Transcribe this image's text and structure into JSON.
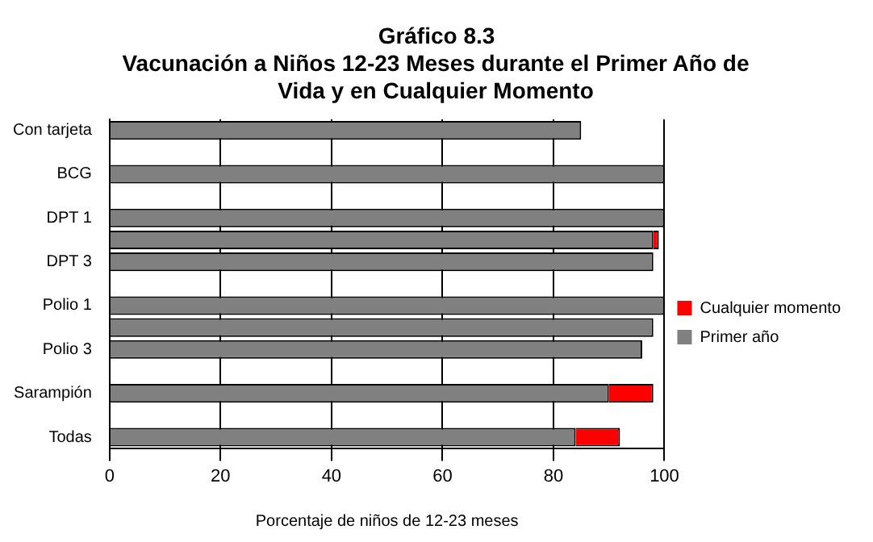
{
  "chart_data": {
    "type": "bar",
    "orientation": "horizontal",
    "stacked": true,
    "title": "Gráfico 8.3",
    "subtitle": "Vacunación a Niños 12-23 Meses durante el Primer Año de Vida y en Cualquier Momento",
    "xlabel": "Porcentaje de niños de 12-23 meses",
    "categories": [
      "Con tarjeta",
      null,
      "BCG",
      null,
      "DPT 1",
      null,
      "DPT 3",
      null,
      "Polio 1",
      null,
      "Polio 3",
      null,
      "Sarampión",
      null,
      "Todas"
    ],
    "series": [
      {
        "name": "Primer año",
        "color": "#808080",
        "values": [
          85,
          null,
          100,
          null,
          100,
          98,
          98,
          null,
          100,
          98,
          96,
          null,
          90,
          null,
          84
        ]
      },
      {
        "name": "Cualquier momento",
        "color": "#ff0000",
        "values": [
          0,
          null,
          0,
          null,
          0,
          1,
          0,
          null,
          0,
          0,
          0,
          null,
          8,
          null,
          8
        ]
      }
    ],
    "xlim": [
      0,
      100
    ],
    "xticks": [
      0,
      20,
      40,
      60,
      80,
      100
    ],
    "grid": "x",
    "legend": "right"
  }
}
